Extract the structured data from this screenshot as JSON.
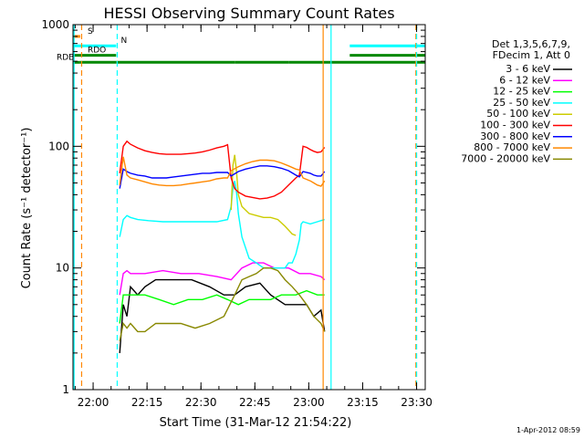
{
  "chart_data": {
    "type": "line",
    "title": "HESSI Observing Summary Count Rates",
    "xlabel": "Start Time (31-Mar-12 21:54:22)",
    "ylabel": "Count Rate (s⁻¹ detector⁻¹)",
    "y_scale": "log",
    "ylim": [
      1,
      1000
    ],
    "xlim_minutes": [
      0,
      98
    ],
    "grid": false,
    "legend_position": "top-right",
    "x_ticks": [
      {
        "label": "22:00",
        "minute": 5.6
      },
      {
        "label": "22:15",
        "minute": 20.6
      },
      {
        "label": "22:30",
        "minute": 35.6
      },
      {
        "label": "22:45",
        "minute": 50.6
      },
      {
        "label": "23:00",
        "minute": 65.6
      },
      {
        "label": "23:15",
        "minute": 80.6
      },
      {
        "label": "23:30",
        "minute": 95.6
      }
    ],
    "y_ticks": [
      {
        "label": "1",
        "value": 1
      },
      {
        "label": "10",
        "value": 10
      },
      {
        "label": "100",
        "value": 100
      },
      {
        "label": "1000",
        "value": 1000
      }
    ],
    "legend_header": [
      "Det 1,3,5,6,7,9,",
      "FDecim 1, Att 0"
    ],
    "series": [
      {
        "name": "3 - 6 keV",
        "color": "#000000",
        "points": [
          [
            13,
            2
          ],
          [
            14,
            5
          ],
          [
            15,
            4
          ],
          [
            16,
            7
          ],
          [
            18,
            6
          ],
          [
            20,
            7
          ],
          [
            23,
            8
          ],
          [
            28,
            8
          ],
          [
            33,
            8
          ],
          [
            38,
            7
          ],
          [
            42,
            6
          ],
          [
            45,
            6
          ],
          [
            48,
            7
          ],
          [
            52,
            7.5
          ],
          [
            55,
            6
          ],
          [
            59,
            5
          ],
          [
            62,
            5
          ],
          [
            65,
            5
          ],
          [
            67,
            4
          ],
          [
            69,
            4.5
          ],
          [
            70,
            3
          ]
        ]
      },
      {
        "name": "6 - 12 keV",
        "color": "#ff00ff",
        "points": [
          [
            13,
            6
          ],
          [
            14,
            9
          ],
          [
            15,
            9.5
          ],
          [
            16,
            9
          ],
          [
            18,
            9
          ],
          [
            20,
            9
          ],
          [
            25,
            9.5
          ],
          [
            30,
            9
          ],
          [
            35,
            9
          ],
          [
            40,
            8.5
          ],
          [
            44,
            8
          ],
          [
            47,
            10
          ],
          [
            50,
            11
          ],
          [
            53,
            11
          ],
          [
            56,
            10
          ],
          [
            60,
            10
          ],
          [
            63,
            9
          ],
          [
            66,
            9
          ],
          [
            69,
            8.5
          ],
          [
            70,
            8
          ]
        ]
      },
      {
        "name": "12 - 25 keV",
        "color": "#00ff00",
        "points": [
          [
            13,
            3.5
          ],
          [
            14,
            6
          ],
          [
            15,
            6
          ],
          [
            16,
            6
          ],
          [
            18,
            6
          ],
          [
            20,
            6
          ],
          [
            24,
            5.5
          ],
          [
            28,
            5
          ],
          [
            32,
            5.5
          ],
          [
            36,
            5.5
          ],
          [
            40,
            6
          ],
          [
            43,
            5.5
          ],
          [
            46,
            5
          ],
          [
            49,
            5.5
          ],
          [
            52,
            5.5
          ],
          [
            55,
            5.5
          ],
          [
            58,
            6
          ],
          [
            62,
            6
          ],
          [
            65,
            6.5
          ],
          [
            68,
            6
          ],
          [
            70,
            6
          ]
        ]
      },
      {
        "name": "25 - 50 keV",
        "color": "#00ffff",
        "points": [
          [
            13,
            18
          ],
          [
            14,
            25
          ],
          [
            15,
            27
          ],
          [
            16,
            26
          ],
          [
            18,
            25
          ],
          [
            21,
            24.5
          ],
          [
            25,
            24
          ],
          [
            30,
            24
          ],
          [
            35,
            24
          ],
          [
            40,
            24
          ],
          [
            43,
            25
          ],
          [
            44,
            32
          ],
          [
            44.5,
            46
          ],
          [
            45,
            52
          ],
          [
            45.5,
            42
          ],
          [
            46,
            28
          ],
          [
            47,
            18
          ],
          [
            49,
            12
          ],
          [
            51,
            11
          ],
          [
            53,
            10
          ],
          [
            55,
            10
          ],
          [
            57,
            10
          ],
          [
            59,
            10
          ],
          [
            60,
            11
          ],
          [
            61,
            11
          ],
          [
            62,
            13
          ],
          [
            63,
            17
          ],
          [
            63.5,
            23
          ],
          [
            64,
            24
          ],
          [
            66,
            23
          ],
          [
            68,
            24
          ],
          [
            70,
            25
          ]
        ]
      },
      {
        "name": "50 - 100 keV",
        "color": "#cccc00",
        "points": [
          [
            44,
            30
          ],
          [
            44.5,
            70
          ],
          [
            45,
            85
          ],
          [
            45.5,
            62
          ],
          [
            46,
            40
          ],
          [
            47,
            32
          ],
          [
            49,
            28
          ],
          [
            51,
            27
          ],
          [
            53,
            26
          ],
          [
            55,
            26
          ],
          [
            57,
            25
          ],
          [
            59,
            22
          ],
          [
            61,
            19
          ],
          [
            62,
            18.5
          ]
        ]
      },
      {
        "name": "100 - 300 keV",
        "color": "#ff0000",
        "points": [
          [
            13,
            60
          ],
          [
            14,
            100
          ],
          [
            15,
            110
          ],
          [
            16,
            104
          ],
          [
            18,
            97
          ],
          [
            20,
            92
          ],
          [
            22,
            89
          ],
          [
            24,
            87
          ],
          [
            26,
            86
          ],
          [
            28,
            86
          ],
          [
            30,
            86
          ],
          [
            32,
            87
          ],
          [
            34,
            88
          ],
          [
            36,
            90
          ],
          [
            38,
            93
          ],
          [
            40,
            97
          ],
          [
            42,
            100
          ],
          [
            43,
            103
          ],
          [
            44,
            55
          ],
          [
            45,
            45
          ],
          [
            46,
            42
          ],
          [
            48,
            39
          ],
          [
            50,
            38
          ],
          [
            52,
            37
          ],
          [
            54,
            37.5
          ],
          [
            56,
            39
          ],
          [
            58,
            42
          ],
          [
            60,
            48
          ],
          [
            62,
            55
          ],
          [
            63,
            58
          ],
          [
            64,
            100
          ],
          [
            65,
            98
          ],
          [
            66,
            94
          ],
          [
            67,
            91
          ],
          [
            68,
            89
          ],
          [
            69,
            90
          ],
          [
            70,
            98
          ]
        ]
      },
      {
        "name": "300 - 800 keV",
        "color": "#0000ff",
        "points": [
          [
            13,
            45
          ],
          [
            14,
            65
          ],
          [
            15,
            62
          ],
          [
            16,
            60
          ],
          [
            18,
            58
          ],
          [
            20,
            57
          ],
          [
            22,
            55
          ],
          [
            24,
            55
          ],
          [
            26,
            55
          ],
          [
            28,
            56
          ],
          [
            30,
            57
          ],
          [
            32,
            58
          ],
          [
            34,
            59
          ],
          [
            36,
            60
          ],
          [
            38,
            60
          ],
          [
            40,
            61
          ],
          [
            42,
            61
          ],
          [
            43,
            61
          ],
          [
            44,
            57
          ],
          [
            46,
            62
          ],
          [
            48,
            65
          ],
          [
            50,
            67
          ],
          [
            52,
            69
          ],
          [
            54,
            69
          ],
          [
            56,
            68
          ],
          [
            58,
            66
          ],
          [
            60,
            63
          ],
          [
            62,
            58
          ],
          [
            63,
            56
          ],
          [
            64,
            62
          ],
          [
            66,
            60
          ],
          [
            67,
            58
          ],
          [
            68,
            57
          ],
          [
            69,
            57
          ],
          [
            70,
            62
          ]
        ]
      },
      {
        "name": "800 - 7000 keV",
        "color": "#ff8800",
        "points": [
          [
            13,
            48
          ],
          [
            14,
            82
          ],
          [
            15,
            58
          ],
          [
            16,
            55
          ],
          [
            18,
            53
          ],
          [
            20,
            51
          ],
          [
            22,
            49
          ],
          [
            24,
            48
          ],
          [
            26,
            47.5
          ],
          [
            28,
            47.5
          ],
          [
            30,
            48
          ],
          [
            32,
            49
          ],
          [
            34,
            50
          ],
          [
            36,
            51
          ],
          [
            38,
            52
          ],
          [
            40,
            54
          ],
          [
            42,
            55
          ],
          [
            43,
            55
          ],
          [
            44,
            63
          ],
          [
            46,
            68
          ],
          [
            48,
            72
          ],
          [
            50,
            75
          ],
          [
            52,
            77
          ],
          [
            54,
            77
          ],
          [
            56,
            76
          ],
          [
            58,
            73
          ],
          [
            60,
            69
          ],
          [
            62,
            65
          ],
          [
            63,
            64
          ],
          [
            64,
            55
          ],
          [
            66,
            52
          ],
          [
            67,
            50
          ],
          [
            68,
            48
          ],
          [
            69,
            47
          ],
          [
            70,
            52
          ]
        ]
      },
      {
        "name": "7000 - 20000 keV",
        "color": "#888800",
        "points": [
          [
            13,
            2.5
          ],
          [
            14,
            3.5
          ],
          [
            15,
            3.2
          ],
          [
            16,
            3.5
          ],
          [
            18,
            3
          ],
          [
            20,
            3
          ],
          [
            23,
            3.5
          ],
          [
            26,
            3.5
          ],
          [
            30,
            3.5
          ],
          [
            34,
            3.2
          ],
          [
            38,
            3.5
          ],
          [
            42,
            4
          ],
          [
            45,
            6
          ],
          [
            47,
            8
          ],
          [
            49,
            8.5
          ],
          [
            51,
            9
          ],
          [
            53,
            10
          ],
          [
            55,
            10
          ],
          [
            57,
            9.5
          ],
          [
            59,
            8
          ],
          [
            61,
            7
          ],
          [
            63,
            6
          ],
          [
            65,
            5
          ],
          [
            67,
            4
          ],
          [
            69,
            3.5
          ],
          [
            70,
            3
          ]
        ]
      }
    ],
    "status_bars": [
      {
        "label": "S",
        "color": "#ff8800",
        "level": 800,
        "segments": [
          [
            0,
            2
          ]
        ]
      },
      {
        "label": "N",
        "color": "#00ffff",
        "level": 670,
        "segments": [
          [
            0,
            12
          ],
          [
            77,
            98
          ]
        ]
      },
      {
        "label": "RDO",
        "color": "#008800",
        "level": 560,
        "segments": [
          [
            0,
            12
          ],
          [
            77,
            98
          ]
        ]
      },
      {
        "label": "RDB",
        "color": "#008800",
        "level": 490,
        "segments": [
          [
            0,
            2
          ],
          [
            2,
            12
          ],
          [
            12,
            45
          ],
          [
            45,
            60
          ],
          [
            60,
            98
          ]
        ]
      }
    ],
    "vertical_markers": [
      {
        "minute": 0.3,
        "color": "#00ffff",
        "style": "solid"
      },
      {
        "minute": 2.4,
        "color": "#ff8800",
        "style": "dashed"
      },
      {
        "minute": 12.3,
        "color": "#00ffff",
        "style": "dashed"
      },
      {
        "minute": 69.6,
        "color": "#ff8800",
        "style": "solid"
      },
      {
        "minute": 71.8,
        "color": "#00ffff",
        "style": "solid"
      },
      {
        "minute": 95.4,
        "color": "#ff8800",
        "style": "dashed"
      },
      {
        "minute": 95.6,
        "color": "#00ffff",
        "style": "dashed"
      }
    ]
  },
  "footer": {
    "date_stamp": "1-Apr-2012 08:59"
  }
}
